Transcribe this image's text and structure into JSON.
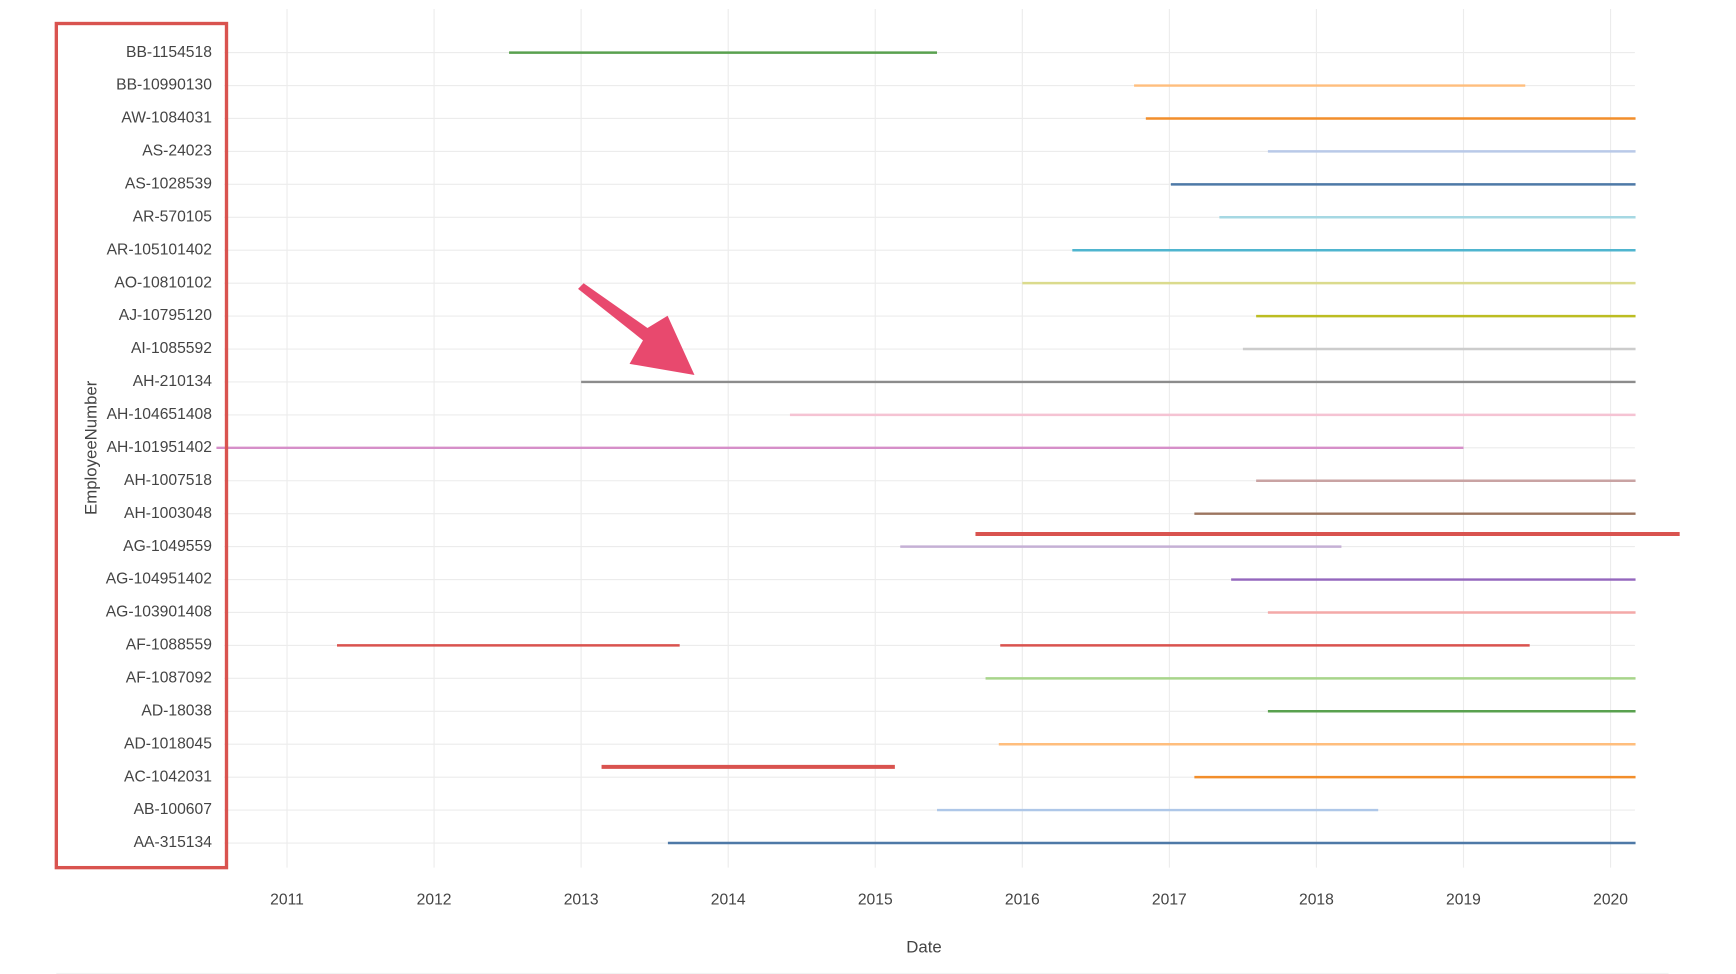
{
  "chart_data": {
    "type": "timeline",
    "xlabel": "Date",
    "ylabel": "EmployeeNumber",
    "categories": [
      "AA-315134",
      "AB-100607",
      "AC-1042031",
      "AD-1018045",
      "AD-18038",
      "AF-1087092",
      "AF-1088559",
      "AG-103901408",
      "AG-104951402",
      "AG-1049559",
      "AH-1003048",
      "AH-1007518",
      "AH-101951402",
      "AH-104651408",
      "AH-210134",
      "AI-1085592",
      "AJ-10795120",
      "AO-10810102",
      "AR-105101402",
      "AR-570105",
      "AS-1028539",
      "AS-24023",
      "AW-1084031",
      "BB-10990130",
      "BB-1154518"
    ],
    "ranges": [
      [
        [
          2013.59,
          2020.17
        ]
      ],
      [
        [
          2015.42,
          2018.42
        ]
      ],
      [
        [
          2017.17,
          2020.17
        ]
      ],
      [
        [
          2015.84,
          2020.17
        ]
      ],
      [
        [
          2017.67,
          2020.17
        ]
      ],
      [
        [
          2015.75,
          2020.17
        ]
      ],
      [
        [
          2011.34,
          2013.67
        ],
        [
          2015.85,
          2019.45
        ]
      ],
      [
        [
          2017.67,
          2020.17
        ]
      ],
      [
        [
          2017.42,
          2020.17
        ]
      ],
      [
        [
          2015.17,
          2018.17
        ]
      ],
      [
        [
          2017.17,
          2020.17
        ]
      ],
      [
        [
          2017.59,
          2020.17
        ]
      ],
      [
        [
          2010.52,
          2019.0
        ]
      ],
      [
        [
          2014.42,
          2020.17
        ]
      ],
      [
        [
          2013.0,
          2020.17
        ]
      ],
      [
        [
          2017.5,
          2020.17
        ]
      ],
      [
        [
          2017.59,
          2020.17
        ]
      ],
      [
        [
          2016.0,
          2020.17
        ]
      ],
      [
        [
          2016.34,
          2020.17
        ]
      ],
      [
        [
          2017.34,
          2020.17
        ]
      ],
      [
        [
          2017.01,
          2020.17
        ]
      ],
      [
        [
          2017.67,
          2020.17
        ]
      ],
      [
        [
          2016.84,
          2020.17
        ]
      ],
      [
        [
          2016.76,
          2019.42
        ]
      ],
      [
        [
          2012.51,
          2015.42
        ]
      ]
    ],
    "colors": [
      "#4e79a7",
      "#aec7e8",
      "#f28e2b",
      "#ffbe7d",
      "#59a14f",
      "#a8d58b",
      "#d9534f",
      "#f4a9a8",
      "#9467bd",
      "#c5b0d5",
      "#9c755f",
      "#c9a3a3",
      "#d68fc9",
      "#f5c3d3",
      "#8c8c8c",
      "#cccccc",
      "#bcbd22",
      "#dbdb8d",
      "#4fb5cf",
      "#a6d8e3",
      "#4e79a7",
      "#b9c9e8",
      "#f28e2b",
      "#ffbe7d",
      "#59a14f"
    ],
    "xlim": [
      2010.52,
      2020.47
    ],
    "xticks": [
      2011,
      2012,
      2013,
      2014,
      2015,
      2016,
      2017,
      2018,
      2019,
      2020
    ],
    "grid": true
  }
}
